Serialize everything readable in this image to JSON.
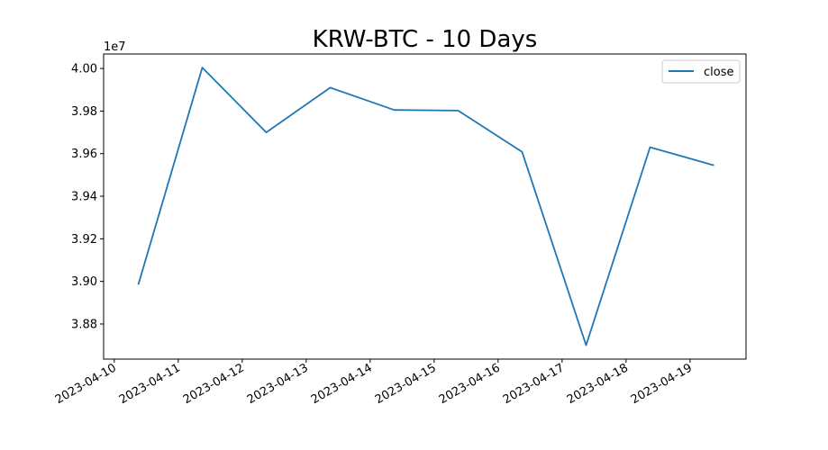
{
  "chart_data": {
    "type": "line",
    "title": "KRW-BTC - 10 Days",
    "xlabel": "",
    "ylabel": "",
    "y_offset_label": "1e7",
    "x": [
      "2023-04-10T09:00",
      "2023-04-11T09:00",
      "2023-04-12T09:00",
      "2023-04-13T09:00",
      "2023-04-14T09:00",
      "2023-04-15T09:00",
      "2023-04-16T09:00",
      "2023-04-17T09:00",
      "2023-04-18T09:00",
      "2023-04-19T09:00"
    ],
    "series": [
      {
        "name": "close",
        "color": "#1f77b4",
        "values": [
          38985000,
          40004000,
          39700000,
          39910000,
          39805000,
          39802000,
          39608000,
          38700000,
          39630000,
          39545000
        ]
      }
    ],
    "x_tick_labels": [
      "2023-04-10",
      "2023-04-11",
      "2023-04-12",
      "2023-04-13",
      "2023-04-14",
      "2023-04-15",
      "2023-04-16",
      "2023-04-17",
      "2023-04-18",
      "2023-04-19"
    ],
    "y_ticks": [
      {
        "value": 38800000,
        "label": "3.88"
      },
      {
        "value": 39000000,
        "label": "3.90"
      },
      {
        "value": 39200000,
        "label": "3.92"
      },
      {
        "value": 39400000,
        "label": "3.94"
      },
      {
        "value": 39600000,
        "label": "3.96"
      },
      {
        "value": 39800000,
        "label": "3.98"
      },
      {
        "value": 40000000,
        "label": "4.00"
      }
    ],
    "xlim": [
      "2023-04-09T20:00",
      "2023-04-19T21:00"
    ],
    "ylim": [
      38635000,
      40068000
    ],
    "grid": false,
    "legend_position": "top-right"
  }
}
